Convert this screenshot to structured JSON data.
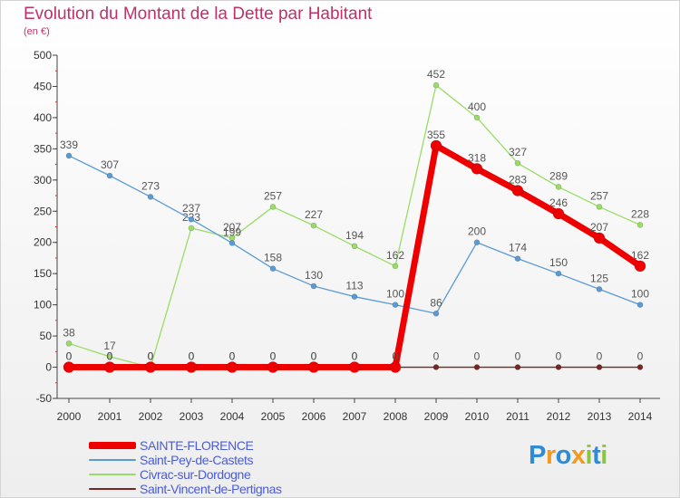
{
  "title": "Evolution du Montant de la Dette par Habitant",
  "subtitle": "(en €)",
  "chart_data": {
    "type": "line",
    "x": [
      "2000",
      "2001",
      "2002",
      "2003",
      "2004",
      "2005",
      "2006",
      "2007",
      "2008",
      "2009",
      "2010",
      "2011",
      "2012",
      "2013",
      "2014"
    ],
    "ylim": [
      -50,
      500
    ],
    "yticks": [
      -50,
      0,
      50,
      100,
      150,
      200,
      250,
      300,
      350,
      400,
      450,
      500
    ],
    "grid": false,
    "legend_position": "bottom-left",
    "series": [
      {
        "name": "Saint-Vincent-de-Pertignas",
        "color": "#7a2525",
        "values": [
          0,
          0,
          0,
          0,
          0,
          0,
          0,
          0,
          0,
          0,
          0,
          0,
          0,
          0,
          0
        ]
      },
      {
        "name": "Civrac-sur-Dordogne",
        "color": "#99dd66",
        "values": [
          38,
          17,
          0,
          223,
          207,
          257,
          227,
          194,
          162,
          452,
          400,
          327,
          289,
          257,
          228
        ]
      },
      {
        "name": "Saint-Pey-de-Castets",
        "color": "#5b9bd5",
        "values": [
          339,
          307,
          273,
          237,
          199,
          158,
          130,
          113,
          100,
          86,
          200,
          174,
          150,
          125,
          100
        ]
      },
      {
        "name": "SAINTE-FLORENCE",
        "color": "#ee0000",
        "values": [
          0,
          0,
          0,
          0,
          0,
          0,
          0,
          0,
          0,
          355,
          318,
          283,
          246,
          207,
          162
        ]
      }
    ]
  },
  "legend": [
    {
      "label": "SAINTE-FLORENCE",
      "color": "#ee0000"
    },
    {
      "label": "Saint-Pey-de-Castets",
      "color": "#5b9bd5"
    },
    {
      "label": "Civrac-sur-Dordogne",
      "color": "#99dd66"
    },
    {
      "label": "Saint-Vincent-de-Pertignas",
      "color": "#7a2525"
    }
  ],
  "logo": {
    "letters": [
      "P",
      "r",
      "o",
      "x",
      "i",
      "t",
      "i"
    ],
    "colors": [
      "#2e8bd6",
      "#f29a1f",
      "#2e8bd6",
      "#f29a1f",
      "#8cc63f",
      "#2e8bd6",
      "#8cc63f"
    ]
  }
}
